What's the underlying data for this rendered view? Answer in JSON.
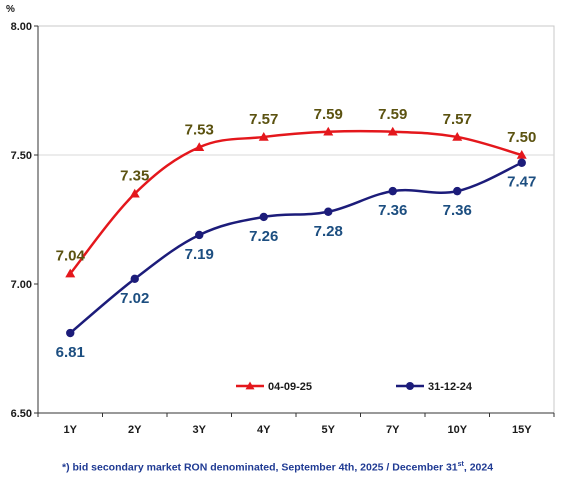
{
  "chart_data": {
    "type": "line",
    "ylabel": "%",
    "categories": [
      "1Y",
      "2Y",
      "3Y",
      "4Y",
      "5Y",
      "7Y",
      "10Y",
      "15Y"
    ],
    "ylim": [
      6.5,
      8.0
    ],
    "yticks": [
      "8.00",
      "7.50",
      "7.00",
      "6.50"
    ],
    "grid": "horizontal at 7.50",
    "legend_position": "bottom-inside",
    "series": [
      {
        "name": "04-09-25",
        "color": "#e4171c",
        "label_color": "#5b5210",
        "marker": "triangle",
        "values": [
          7.04,
          7.35,
          7.53,
          7.57,
          7.59,
          7.59,
          7.57,
          7.5
        ],
        "labels": [
          "7.04",
          "7.35",
          "7.53",
          "7.57",
          "7.59",
          "7.59",
          "7.57",
          "7.50"
        ]
      },
      {
        "name": "31-12-24",
        "color": "#1c1c7a",
        "label_color": "#1c4e80",
        "marker": "circle",
        "values": [
          6.81,
          7.02,
          7.19,
          7.26,
          7.28,
          7.36,
          7.36,
          7.47
        ],
        "labels": [
          "6.81",
          "7.02",
          "7.19",
          "7.26",
          "7.28",
          "7.36",
          "7.36",
          "7.47"
        ]
      }
    ]
  },
  "footnote": {
    "pre": "*) bid secondary market RON denominated, September 4th, 2025 / December 31",
    "sup": "st",
    "post": ", 2024"
  }
}
